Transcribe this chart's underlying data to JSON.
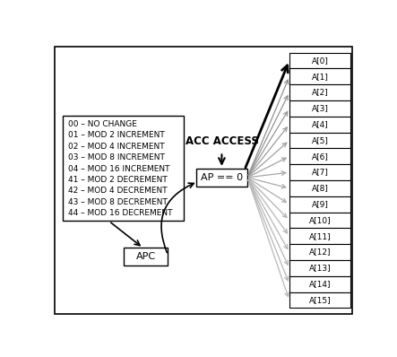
{
  "bg_color": "#ffffff",
  "border_color": "#000000",
  "accumulator_labels": [
    "A[0]",
    "A[1]",
    "A[2]",
    "A[3]",
    "A[4]",
    "A[5]",
    "A[6]",
    "A[7]",
    "A[8]",
    "A[9]",
    "A[10]",
    "A[11]",
    "A[12]",
    "A[13]",
    "A[14]",
    "A[15]"
  ],
  "instruction_lines": [
    "00 – NO CHANGE",
    "01 – MOD 2 INCREMENT",
    "02 – MOD 4 INCREMENT",
    "03 – MOD 8 INCREMENT",
    "04 – MOD 16 INCREMENT",
    "41 – MOD 2 DECREMENT",
    "42 – MOD 4 DECREMENT",
    "43 – MOD 8 DECREMENT",
    "44 – MOD 16 DECREMENT"
  ],
  "ap_label": "AP == 0",
  "apc_label": "APC",
  "acc_access_label": "ACC ACCESS",
  "arrow_color_dark": "#000000",
  "arrow_color_gray": "#b0b0b0",
  "font_size_small": 6.5,
  "font_size_ap": 8,
  "font_size_acc": 8.5
}
